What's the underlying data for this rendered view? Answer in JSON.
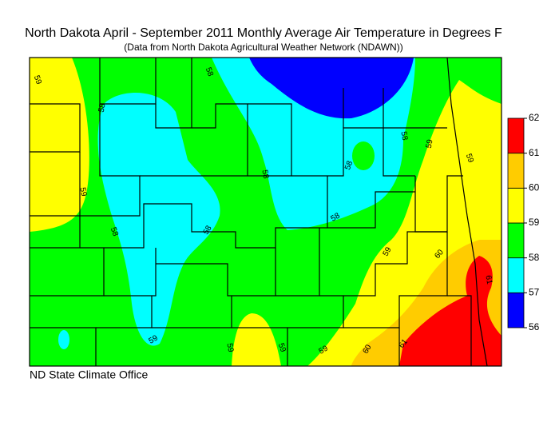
{
  "header": {
    "title": "North Dakota April - September 2011 Monthly Average Air Temperature in Degrees F",
    "subtitle": "(Data from North Dakota Agricultural Weather Network (NDAWN))"
  },
  "legend": {
    "ticks": [
      56,
      57,
      58,
      59,
      60,
      61,
      62
    ],
    "colors": [
      "#0000ff",
      "#00ffff",
      "#00ff00",
      "#ffff00",
      "#ffcc00",
      "#ff0000"
    ]
  },
  "contour_labels": [
    59,
    58,
    58,
    59,
    58,
    58,
    58,
    58,
    58,
    58,
    59,
    59,
    59,
    60,
    61,
    59,
    59,
    59,
    59,
    60,
    61
  ],
  "footer": "ND State Climate Office"
}
